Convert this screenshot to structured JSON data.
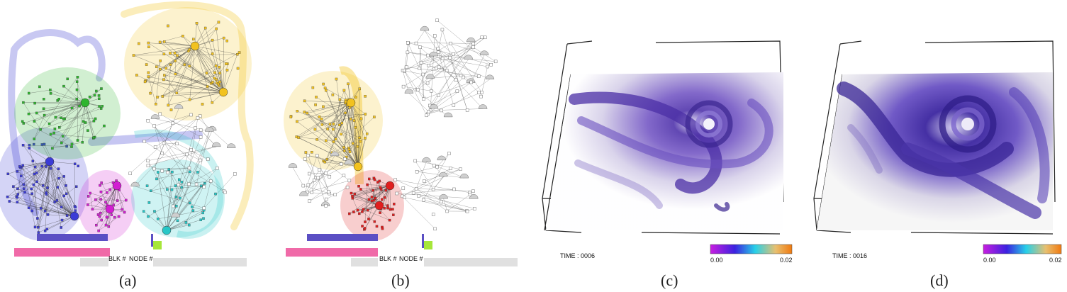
{
  "panels": [
    {
      "id": "a",
      "caption": "(a)",
      "labels": {
        "blk": "BLK #",
        "node": "NODE #"
      }
    },
    {
      "id": "b",
      "caption": "(b)",
      "labels": {
        "blk": "BLK #",
        "node": "NODE #"
      }
    },
    {
      "id": "c",
      "caption": "(c)",
      "time": "TIME : 0006",
      "colorbar": {
        "min": "0.00",
        "max": "0.02"
      }
    },
    {
      "id": "d",
      "caption": "(d)",
      "time": "TIME : 0016",
      "colorbar": {
        "min": "0.00",
        "max": "0.02"
      }
    }
  ],
  "colors": {
    "blue": "#3b3bd6",
    "green": "#2fb52f",
    "magenta": "#d21ed2",
    "cyan": "#26c7c7",
    "yellow": "#f2c21f",
    "red": "#e01e1e",
    "gray": "#cfcfcf",
    "pink": "#f06aa8",
    "purple_bar": "#5b4fc4",
    "lime": "#a6e63a"
  }
}
